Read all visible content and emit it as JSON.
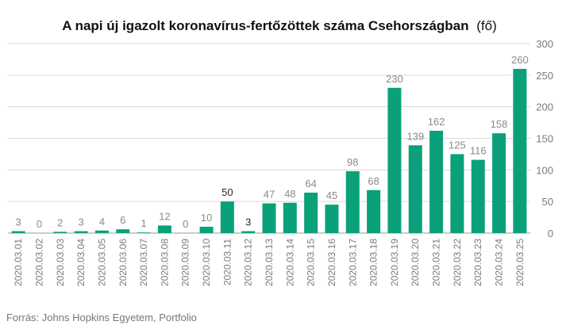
{
  "chart_data": {
    "type": "bar",
    "title": "A napi új igazolt koronavírus-fertőzöttek száma Csehországban",
    "title_unit": "(fő)",
    "source": "Forrás: Johns Hopkins Egyetem, Portfolio",
    "categories": [
      "2020.03.01",
      "2020.03.02",
      "2020.03.03",
      "2020.03.04",
      "2020.03.05",
      "2020.03.06",
      "2020.03.07",
      "2020.03.08",
      "2020.03.09",
      "2020.03.10",
      "2020.03.11",
      "2020.03.12",
      "2020.03.13",
      "2020.03.14",
      "2020.03.15",
      "2020.03.16",
      "2020.03.17",
      "2020.03.18",
      "2020.03.19",
      "2020.03.20",
      "2020.03.21",
      "2020.03.22",
      "2020.03.23",
      "2020.03.24",
      "2020.03.25"
    ],
    "values": [
      3,
      0,
      2,
      3,
      4,
      6,
      1,
      12,
      0,
      10,
      50,
      3,
      47,
      48,
      64,
      45,
      98,
      68,
      230,
      139,
      162,
      125,
      116,
      158,
      260
    ],
    "labels": [
      "3",
      "0",
      "2",
      "3",
      "4",
      "6",
      "1",
      "12",
      "0",
      "10",
      "50",
      "3",
      "47",
      "48",
      "64",
      "45",
      "98",
      "68",
      "230",
      "139",
      "162",
      "125",
      "116",
      "158",
      "260"
    ],
    "ylim": [
      0,
      300
    ],
    "yticks": [
      0,
      50,
      100,
      150,
      200,
      250,
      300
    ],
    "y_axis_side": "right",
    "grid": true,
    "bar_color": "#0aa07a",
    "dark_label_color": "#2b2b2b",
    "light_label_color": "#8a8a8a",
    "grid_color": "#d9d9d9",
    "tick_color": "#7a7a7a"
  }
}
